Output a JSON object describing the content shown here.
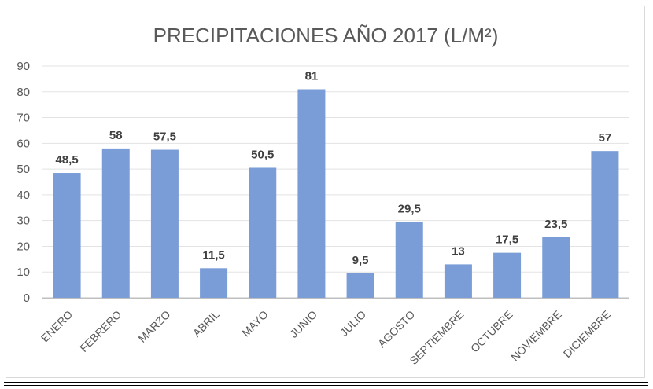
{
  "chart_data": {
    "type": "bar",
    "title": "PRECIPITACIONES AÑO 2017 (L/M²)",
    "xlabel": "",
    "ylabel": "",
    "categories": [
      "ENERO",
      "FEBRERO",
      "MARZO",
      "ABRIL",
      "MAYO",
      "JUNIO",
      "JULIO",
      "AGOSTO",
      "SEPTIEMBRE",
      "OCTUBRE",
      "NOVIEMBRE",
      "DICIEMBRE"
    ],
    "values": [
      48.5,
      58,
      57.5,
      11.5,
      50.5,
      81,
      9.5,
      29.5,
      13,
      17.5,
      23.5,
      57
    ],
    "data_labels": [
      "48,5",
      "58",
      "57,5",
      "11,5",
      "50,5",
      "81",
      "9,5",
      "29,5",
      "13",
      "17,5",
      "23,5",
      "57"
    ],
    "ylim": [
      0,
      90
    ],
    "yticks": [
      0,
      10,
      20,
      30,
      40,
      50,
      60,
      70,
      80,
      90
    ],
    "grid": true,
    "legend": "none",
    "colors": {
      "bar": "#7a9dd8",
      "grid": "#e3e3e3",
      "axis": "#bfbfbf",
      "text": "#595959",
      "label": "#404040"
    }
  }
}
